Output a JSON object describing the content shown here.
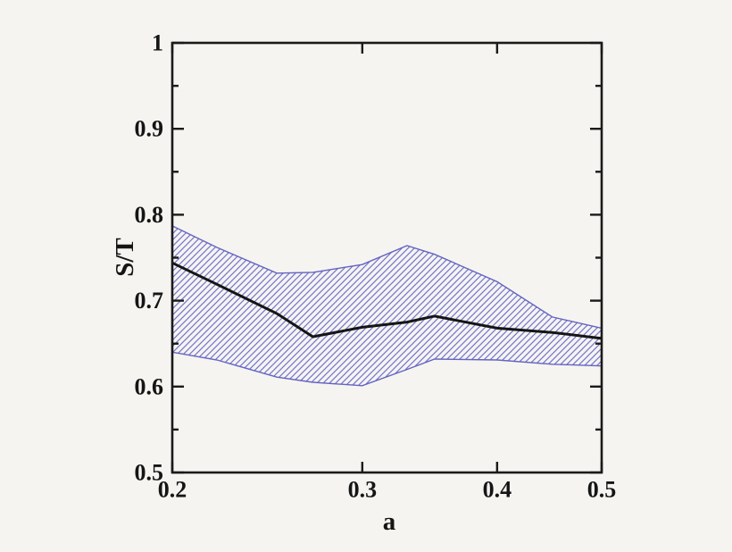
{
  "figure": {
    "background_color": "#f5f4f1",
    "frame_color": "#1a1a1a",
    "text_color": "#151515"
  },
  "chart_data": {
    "type": "line",
    "title": "",
    "xlabel": "a",
    "ylabel": "S/T",
    "x_scale": "log",
    "y_scale": "linear",
    "xlim": [
      0.2,
      0.5
    ],
    "ylim": [
      0.5,
      1.0
    ],
    "grid": false,
    "legend": null,
    "x_major_ticks": [
      0.2,
      0.3,
      0.4,
      0.5
    ],
    "x_tick_labels": [
      "0.2",
      "0.3",
      "0.4",
      "0.5"
    ],
    "y_major_ticks": [
      0.5,
      0.6,
      0.7,
      0.8,
      0.9,
      1.0
    ],
    "y_tick_labels": [
      "0.5",
      "0.6",
      "0.7",
      "0.8",
      "0.9",
      "1"
    ],
    "y_minor_ticks": [
      0.55,
      0.65,
      0.75,
      0.85,
      0.95
    ],
    "x_minor_ticks": [],
    "x": [
      0.2,
      0.22,
      0.25,
      0.27,
      0.3,
      0.33,
      0.35,
      0.4,
      0.45,
      0.5
    ],
    "series": [
      {
        "name": "mean S/T line",
        "role": "mean",
        "color": "#151515",
        "line_width": 3,
        "values": [
          0.744,
          0.719,
          0.685,
          0.658,
          0.669,
          0.675,
          0.682,
          0.668,
          0.663,
          0.656
        ]
      },
      {
        "name": "uncertainty band upper edge",
        "role": "band-upper",
        "color": "#6666c4",
        "values": [
          0.787,
          0.762,
          0.732,
          0.733,
          0.742,
          0.764,
          0.754,
          0.722,
          0.681,
          0.668
        ]
      },
      {
        "name": "uncertainty band lower edge",
        "role": "band-lower",
        "color": "#6666c4",
        "values": [
          0.64,
          0.631,
          0.611,
          0.605,
          0.601,
          0.62,
          0.632,
          0.631,
          0.626,
          0.624
        ]
      }
    ],
    "band": {
      "style": "diagonal-hatch",
      "hatch_direction": "forward-slash",
      "hatch_color": "#7272ca",
      "edge_color": "#6464c2",
      "hatch_spacing_px": 7
    }
  }
}
